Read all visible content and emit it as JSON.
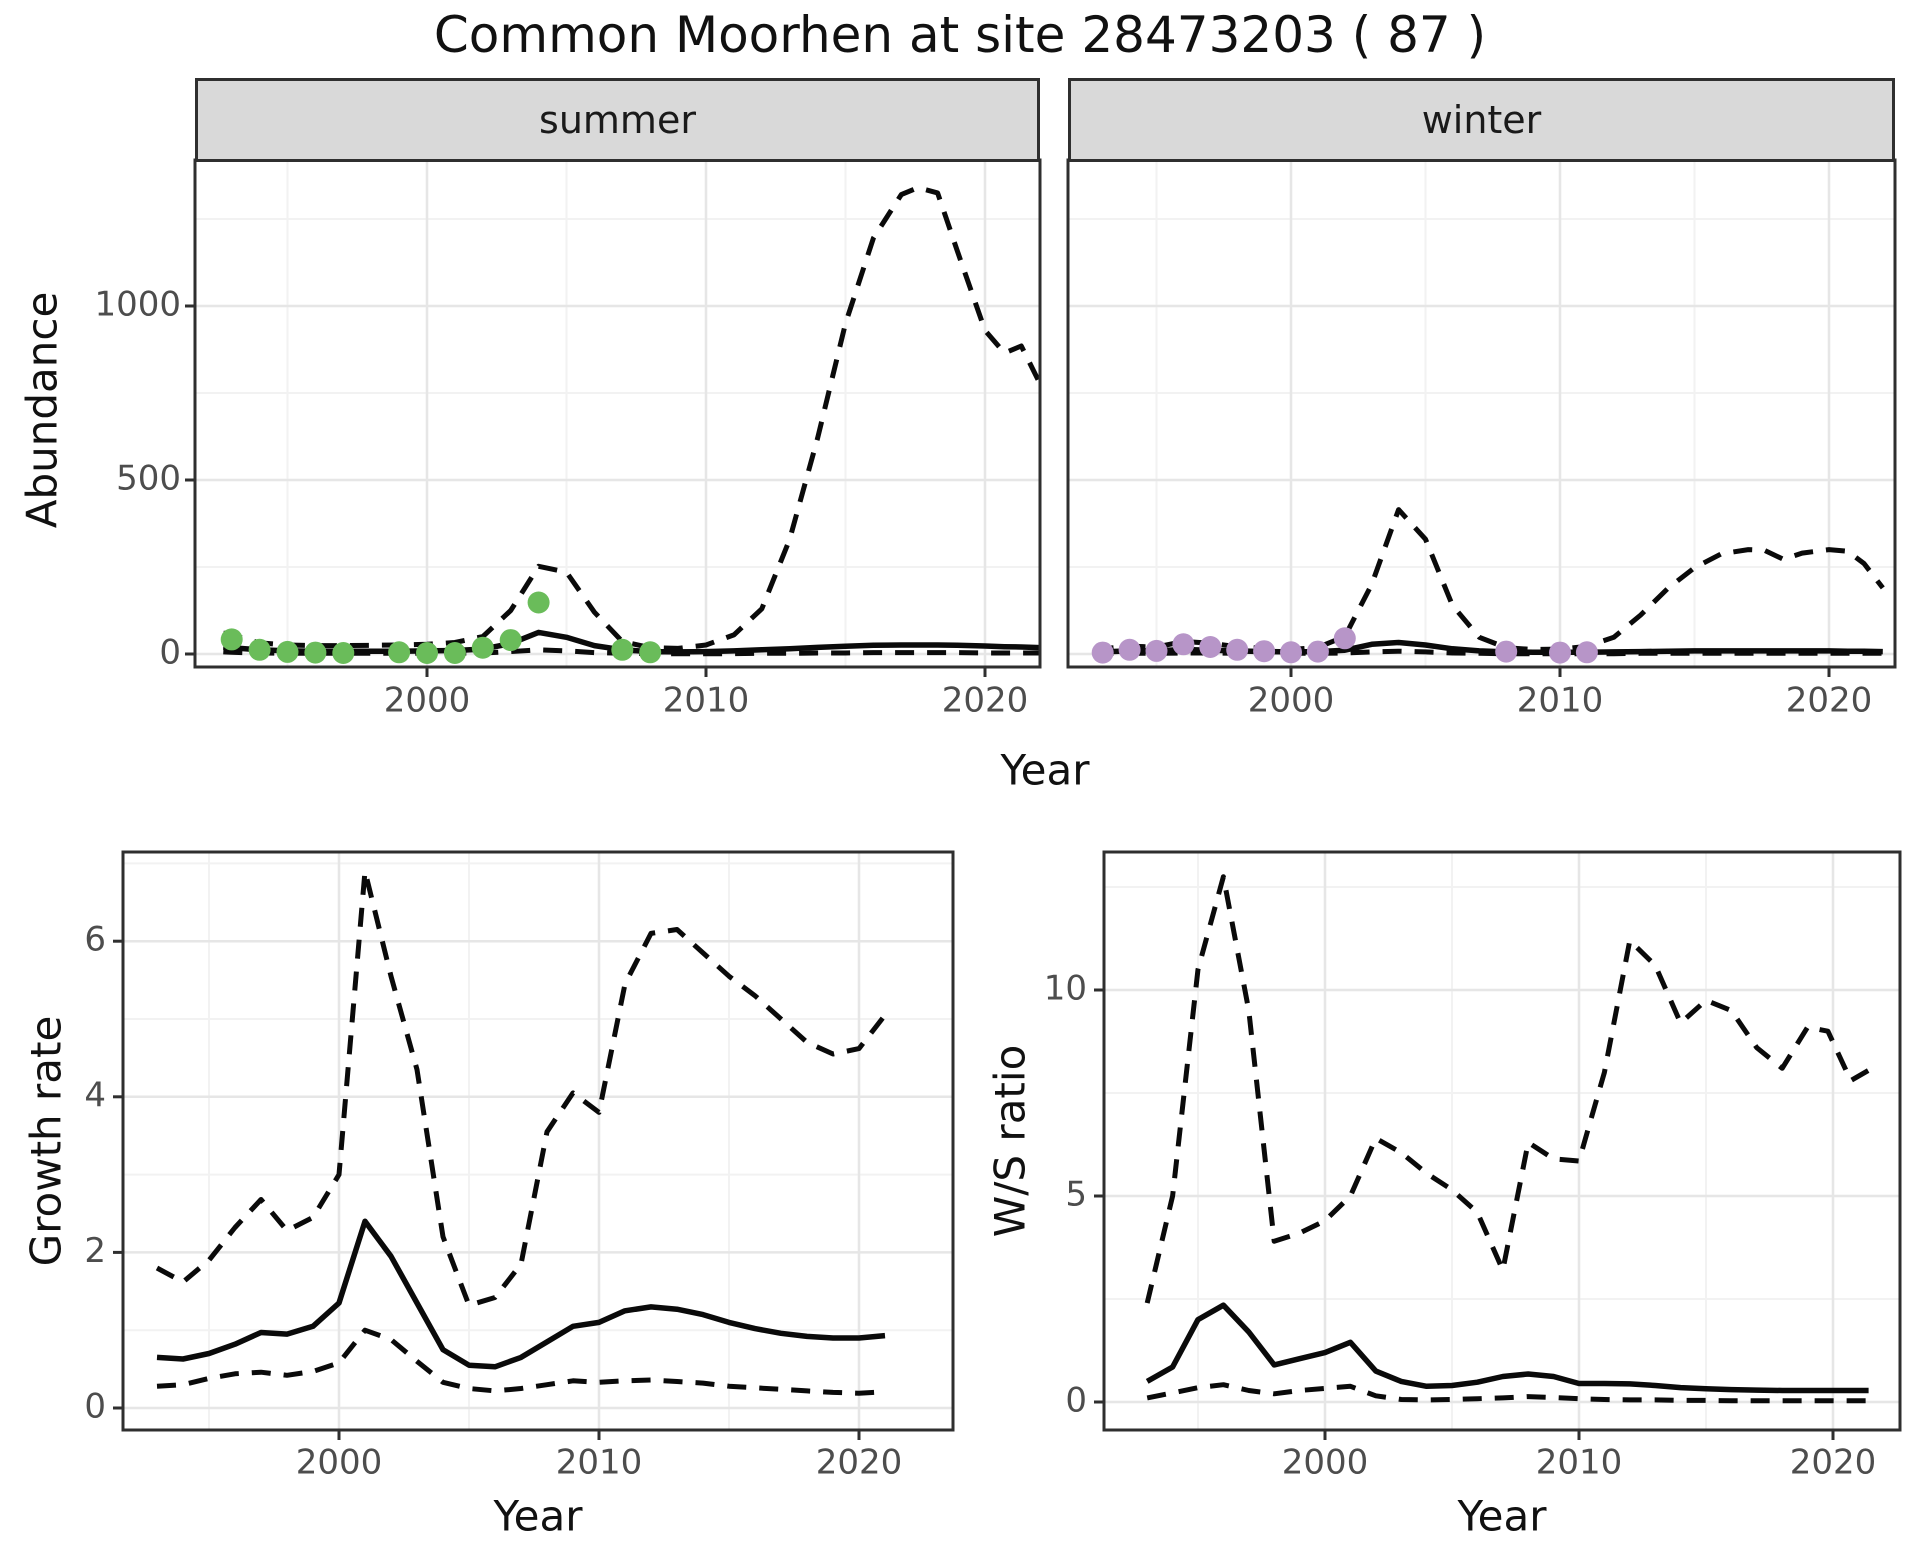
{
  "title": "Common Moorhen at site 28473203 ( 87 )",
  "labels": {
    "facet_summer": "summer",
    "facet_winter": "winter",
    "abundance_axis": "Abundance",
    "year_axis_top": "Year",
    "growth_axis": "Growth rate",
    "year_axis_growth": "Year",
    "ws_axis": "W/S ratio",
    "year_axis_ws": "Year"
  },
  "colors": {
    "summer_point": "#6abc5a",
    "winter_point": "#b795c8",
    "line": "#0a0a0a",
    "grid_major": "#e6e6e6",
    "grid_minor": "#f2f2f2",
    "panel_border": "#2f2f2f",
    "axis_text": "#4d4d4d",
    "strip_fill": "#d9d9d9"
  },
  "chart_data": [
    {
      "id": "abundance_summer",
      "type": "line",
      "facet": "summer",
      "ylabel": "Abundance",
      "xlabel": "Year",
      "xlim": [
        1991.7,
        2022.3
      ],
      "ylim": [
        -40,
        1420
      ],
      "xticks": [
        2000,
        2010,
        2020
      ],
      "xticks_minor": [
        1995,
        2005,
        2015
      ],
      "yticks": [
        0,
        500,
        1000
      ],
      "yticks_minor": [
        250,
        750,
        1250
      ],
      "grid": true,
      "legend": "none",
      "x": [
        1992.7,
        1993,
        1994,
        1995,
        1996,
        1997,
        1998,
        1999,
        2000,
        2001,
        2002,
        2003,
        2004,
        2005,
        2006,
        2007,
        2008,
        2009,
        2010,
        2011,
        2012,
        2013,
        2014,
        2015,
        2016,
        2017,
        2017.6,
        2018.3,
        2019,
        2020,
        2020.7,
        2021.3,
        2022
      ],
      "series": [
        {
          "name": "lower_ci",
          "style": "dashed",
          "y": [
            6,
            5,
            3,
            2,
            2,
            2,
            2,
            2,
            2,
            2,
            3,
            7,
            12,
            9,
            4,
            2,
            1,
            1,
            1,
            1,
            2,
            2,
            3,
            3,
            4,
            4,
            4,
            4,
            4,
            3,
            3,
            3,
            3
          ]
        },
        {
          "name": "upper_ci",
          "style": "dashed",
          "y": [
            60,
            55,
            32,
            26,
            24,
            24,
            25,
            26,
            28,
            33,
            50,
            125,
            252,
            235,
            120,
            36,
            18,
            16,
            26,
            55,
            130,
            330,
            620,
            950,
            1195,
            1320,
            1340,
            1325,
            1160,
            930,
            865,
            885,
            772
          ]
        },
        {
          "name": "median",
          "style": "solid",
          "y": [
            20,
            18,
            12,
            9,
            8,
            8,
            8,
            8,
            9,
            10,
            14,
            30,
            62,
            48,
            24,
            12,
            7,
            6,
            7,
            9,
            12,
            15,
            19,
            22,
            25,
            26,
            26,
            26,
            25,
            23,
            21,
            20,
            18
          ]
        }
      ],
      "points": {
        "name": "observed_summer_counts",
        "color": "#6abc5a",
        "x": [
          1993,
          1994,
          1995,
          1996,
          1997,
          1999,
          2000,
          2001,
          2002,
          2003,
          2004,
          2007,
          2008
        ],
        "y": [
          42,
          12,
          6,
          4,
          3,
          5,
          3,
          3,
          18,
          40,
          148,
          12,
          5
        ]
      }
    },
    {
      "id": "abundance_winter",
      "type": "line",
      "facet": "winter",
      "ylabel": "Abundance",
      "xlabel": "Year",
      "xlim": [
        1991.7,
        2022.3
      ],
      "ylim": [
        -40,
        1420
      ],
      "xticks": [
        2000,
        2010,
        2020
      ],
      "xticks_minor": [
        1995,
        2005,
        2015
      ],
      "yticks": [
        0,
        500,
        1000
      ],
      "yticks_minor": [
        250,
        750,
        1250
      ],
      "grid": true,
      "legend": "none",
      "x": [
        1992.7,
        1993,
        1994,
        1995,
        1996,
        1997,
        1998,
        1999,
        2000,
        2001,
        2002,
        2003,
        2004,
        2005,
        2006,
        2007,
        2008,
        2009,
        2010,
        2011,
        2012,
        2013,
        2014,
        2015,
        2016,
        2017,
        2017.6,
        2018.3,
        2019,
        2020,
        2020.7,
        2021.3,
        2022
      ],
      "series": [
        {
          "name": "lower_ci",
          "style": "dashed",
          "y": [
            2,
            2,
            2,
            2,
            3,
            3,
            2,
            2,
            2,
            2,
            3,
            6,
            8,
            6,
            3,
            2,
            1,
            1,
            1,
            1,
            1,
            2,
            2,
            2,
            2,
            2,
            2,
            2,
            2,
            2,
            2,
            2,
            2
          ]
        },
        {
          "name": "upper_ci",
          "style": "dashed",
          "y": [
            14,
            15,
            22,
            20,
            36,
            31,
            21,
            16,
            13,
            19,
            50,
            200,
            415,
            330,
            140,
            48,
            18,
            13,
            14,
            22,
            48,
            112,
            188,
            248,
            288,
            300,
            298,
            272,
            290,
            300,
            295,
            260,
            190
          ]
        },
        {
          "name": "median",
          "style": "solid",
          "y": [
            6,
            6,
            9,
            9,
            13,
            11,
            9,
            7,
            6,
            7,
            11,
            28,
            33,
            26,
            15,
            9,
            6,
            5,
            5,
            5,
            6,
            7,
            8,
            9,
            9,
            9,
            9,
            9,
            9,
            9,
            8,
            8,
            7
          ]
        }
      ],
      "points": {
        "name": "observed_winter_counts",
        "color": "#b795c8",
        "x": [
          1993,
          1994,
          1995,
          1996,
          1997,
          1998,
          1999,
          2000,
          2001,
          2002,
          2008,
          2010,
          2011
        ],
        "y": [
          4,
          12,
          9,
          28,
          20,
          12,
          8,
          5,
          7,
          45,
          7,
          4,
          5
        ]
      }
    },
    {
      "id": "growth_rate",
      "type": "line",
      "ylabel": "Growth rate",
      "xlabel": "Year",
      "xlim": [
        1991.7,
        2023.6
      ],
      "ylim": [
        -0.28,
        7.15
      ],
      "xticks": [
        2000,
        2010,
        2020
      ],
      "xticks_minor": [
        1995,
        2005,
        2015
      ],
      "yticks": [
        0,
        2,
        4,
        6
      ],
      "yticks_minor": [
        1,
        3,
        5,
        7
      ],
      "grid": true,
      "legend": "none",
      "x": [
        1993,
        1994,
        1995,
        1996,
        1997,
        1998,
        1999,
        2000,
        2001,
        2002,
        2003,
        2004,
        2005,
        2006,
        2007,
        2008,
        2009,
        2010,
        2011,
        2012,
        2013,
        2014,
        2015,
        2016,
        2017,
        2018,
        2019,
        2020,
        2021
      ],
      "series": [
        {
          "name": "lower_ci",
          "style": "dashed",
          "y": [
            0.28,
            0.3,
            0.38,
            0.44,
            0.46,
            0.42,
            0.47,
            0.58,
            1.0,
            0.88,
            0.6,
            0.33,
            0.25,
            0.22,
            0.25,
            0.3,
            0.35,
            0.33,
            0.35,
            0.36,
            0.34,
            0.32,
            0.28,
            0.26,
            0.24,
            0.22,
            0.2,
            0.19,
            0.21
          ]
        },
        {
          "name": "upper_ci",
          "style": "dashed",
          "y": [
            1.8,
            1.62,
            1.9,
            2.32,
            2.68,
            2.28,
            2.45,
            3.0,
            6.9,
            5.55,
            4.35,
            2.2,
            1.32,
            1.42,
            1.85,
            3.55,
            4.05,
            3.8,
            5.45,
            6.1,
            6.15,
            5.85,
            5.55,
            5.3,
            5.0,
            4.7,
            4.55,
            4.62,
            5.05
          ]
        },
        {
          "name": "median",
          "style": "solid",
          "y": [
            0.65,
            0.63,
            0.7,
            0.82,
            0.97,
            0.95,
            1.05,
            1.35,
            2.4,
            1.95,
            1.35,
            0.75,
            0.55,
            0.53,
            0.65,
            0.85,
            1.05,
            1.1,
            1.25,
            1.3,
            1.27,
            1.2,
            1.1,
            1.02,
            0.96,
            0.92,
            0.9,
            0.9,
            0.93
          ]
        }
      ]
    },
    {
      "id": "ws_ratio",
      "type": "line",
      "ylabel": "W/S ratio",
      "xlabel": "Year",
      "xlim": [
        1991.3,
        2022.6
      ],
      "ylim": [
        -0.68,
        13.3
      ],
      "xticks": [
        2000,
        2010,
        2020
      ],
      "xticks_minor": [
        1995,
        2005,
        2015
      ],
      "yticks": [
        0,
        5,
        10
      ],
      "yticks_minor": [
        2.5,
        7.5,
        12.5
      ],
      "grid": true,
      "legend": "none",
      "x": [
        1993,
        1994,
        1995,
        1996,
        1997,
        1998,
        1999,
        2000,
        2001,
        2002,
        2003,
        2004,
        2005,
        2006,
        2007,
        2008,
        2009,
        2010,
        2011,
        2012,
        2013,
        2014,
        2015,
        2016,
        2017,
        2018,
        2019,
        2019.8,
        2020.7,
        2021.4
      ],
      "series": [
        {
          "name": "lower_ci",
          "style": "dashed",
          "y": [
            0.1,
            0.22,
            0.35,
            0.42,
            0.28,
            0.2,
            0.28,
            0.33,
            0.38,
            0.15,
            0.06,
            0.05,
            0.06,
            0.08,
            0.1,
            0.13,
            0.11,
            0.08,
            0.06,
            0.05,
            0.05,
            0.04,
            0.04,
            0.03,
            0.03,
            0.03,
            0.03,
            0.03,
            0.03,
            0.03
          ]
        },
        {
          "name": "upper_ci",
          "style": "dashed",
          "y": [
            2.4,
            5.0,
            10.5,
            12.75,
            9.5,
            3.9,
            4.1,
            4.4,
            5.0,
            6.4,
            6.05,
            5.55,
            5.15,
            4.6,
            3.2,
            6.3,
            5.9,
            5.85,
            8.0,
            11.2,
            10.6,
            9.2,
            9.75,
            9.5,
            8.6,
            8.1,
            9.1,
            9.0,
            7.8,
            8.05
          ]
        },
        {
          "name": "median",
          "style": "solid",
          "y": [
            0.5,
            0.85,
            2.0,
            2.35,
            1.7,
            0.9,
            1.05,
            1.2,
            1.45,
            0.75,
            0.5,
            0.38,
            0.4,
            0.48,
            0.62,
            0.68,
            0.62,
            0.45,
            0.45,
            0.44,
            0.4,
            0.35,
            0.32,
            0.3,
            0.29,
            0.28,
            0.28,
            0.28,
            0.28,
            0.28
          ]
        }
      ]
    }
  ]
}
